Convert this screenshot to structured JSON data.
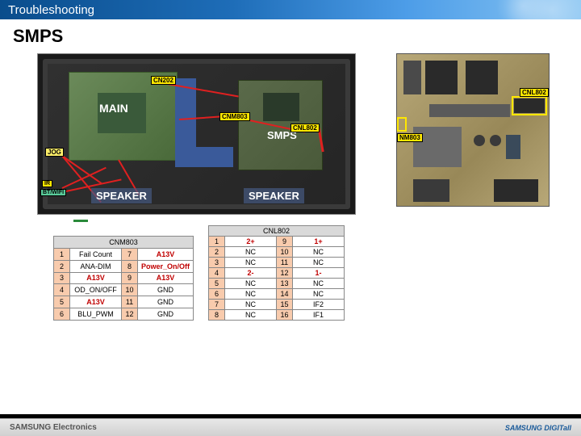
{
  "header": {
    "title": "Troubleshooting"
  },
  "page": {
    "title": "SMPS"
  },
  "diagram": {
    "main_label": "MAIN",
    "smps_label": "SMPS",
    "speaker_label": "SPEAKER",
    "tags": {
      "cn202": "CN202",
      "cnm803": "CNM803",
      "cnl802": "CNL802",
      "jog": "JOG",
      "ir": "IR",
      "btwifi": "BT/WIFI"
    }
  },
  "pcb": {
    "tag_left": "NM803",
    "tag_right": "CNL802"
  },
  "tables": {
    "cnm803": {
      "title": "CNM803",
      "rows": [
        {
          "n1": "1",
          "v1": "Fail Count",
          "r1": false,
          "n2": "7",
          "v2": "A13V",
          "r2": true
        },
        {
          "n1": "2",
          "v1": "ANA-DIM",
          "r1": false,
          "n2": "8",
          "v2": "Power_On/Off",
          "r2": true
        },
        {
          "n1": "3",
          "v1": "A13V",
          "r1": true,
          "n2": "9",
          "v2": "A13V",
          "r2": true
        },
        {
          "n1": "4",
          "v1": "OD_ON/OFF",
          "r1": false,
          "n2": "10",
          "v2": "GND",
          "r2": false
        },
        {
          "n1": "5",
          "v1": "A13V",
          "r1": true,
          "n2": "11",
          "v2": "GND",
          "r2": false
        },
        {
          "n1": "6",
          "v1": "BLU_PWM",
          "r1": false,
          "n2": "12",
          "v2": "GND",
          "r2": false
        }
      ]
    },
    "cnl802": {
      "title": "CNL802",
      "rows": [
        {
          "n1": "1",
          "v1": "2+",
          "r1": true,
          "n2": "9",
          "v2": "1+",
          "r2": true
        },
        {
          "n1": "2",
          "v1": "NC",
          "r1": false,
          "n2": "10",
          "v2": "NC",
          "r2": false
        },
        {
          "n1": "3",
          "v1": "NC",
          "r1": false,
          "n2": "11",
          "v2": "NC",
          "r2": false
        },
        {
          "n1": "4",
          "v1": "2-",
          "r1": true,
          "n2": "12",
          "v2": "1-",
          "r2": true
        },
        {
          "n1": "5",
          "v1": "NC",
          "r1": false,
          "n2": "13",
          "v2": "NC",
          "r2": false
        },
        {
          "n1": "6",
          "v1": "NC",
          "r1": false,
          "n2": "14",
          "v2": "NC",
          "r2": false
        },
        {
          "n1": "7",
          "v1": "NC",
          "r1": false,
          "n2": "15",
          "v2": "IF2",
          "r2": false
        },
        {
          "n1": "8",
          "v1": "NC",
          "r1": false,
          "n2": "16",
          "v2": "IF1",
          "r2": false
        }
      ]
    }
  },
  "footer": {
    "left": "SAMSUNG Electronics",
    "right": "SAMSUNG DIGITall"
  }
}
